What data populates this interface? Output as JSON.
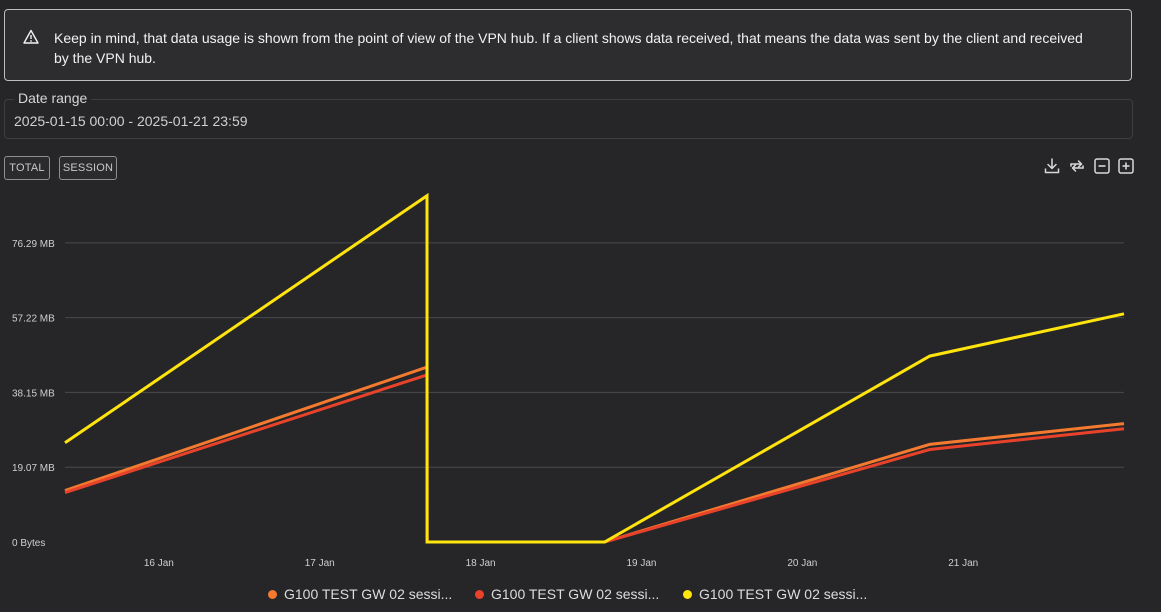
{
  "notice": {
    "text": "Keep in mind, that data usage is shown from the point of view of the VPN hub. If a client shows data received, that means the data was sent by the client and received by the VPN hub."
  },
  "date_range": {
    "label": "Date range",
    "value": "2025-01-15 00:00 - 2025-01-21 23:59"
  },
  "toggles": {
    "total": "TOTAL",
    "session": "SESSION"
  },
  "toolbar": {
    "icons": [
      "download-icon",
      "reset-icon",
      "zoom-out-icon",
      "zoom-in-icon"
    ]
  },
  "colors": {
    "background": "#262628",
    "grid": "#4a4a4e",
    "axis_text": "#cfcfcf"
  },
  "chart_data": {
    "type": "line",
    "x_unit": "date",
    "y_unit": "MB",
    "ylim": [
      0,
      95.37
    ],
    "y_ticks": [
      {
        "value": 0,
        "label": "0 Bytes"
      },
      {
        "value": 19.07,
        "label": "19.07 MB"
      },
      {
        "value": 38.15,
        "label": "38.15 MB"
      },
      {
        "value": 57.22,
        "label": "57.22 MB"
      },
      {
        "value": 76.29,
        "label": "76.29 MB"
      }
    ],
    "xlim": [
      "2025-01-15 10:00",
      "2025-01-21 23:59"
    ],
    "x_ticks": [
      {
        "value": "2025-01-16 00:00",
        "label": "16 Jan"
      },
      {
        "value": "2025-01-17 00:00",
        "label": "17 Jan"
      },
      {
        "value": "2025-01-18 00:00",
        "label": "18 Jan"
      },
      {
        "value": "2025-01-19 00:00",
        "label": "19 Jan"
      },
      {
        "value": "2025-01-20 00:00",
        "label": "20 Jan"
      },
      {
        "value": "2025-01-21 00:00",
        "label": "21 Jan"
      }
    ],
    "grid": true,
    "legend_position": "bottom",
    "series": [
      {
        "name": "G100 TEST GW 02 sessi...",
        "color": "#f47a30",
        "points": [
          {
            "x": "2025-01-15 10:00",
            "y": 13.1
          },
          {
            "x": "2025-01-17 16:00",
            "y": 44.6
          },
          {
            "x": "2025-01-17 16:01",
            "y": 0
          },
          {
            "x": "2025-01-18 18:30",
            "y": 0
          },
          {
            "x": "2025-01-20 19:00",
            "y": 24.9
          },
          {
            "x": "2025-01-21 23:59",
            "y": 30.2
          }
        ]
      },
      {
        "name": "G100 TEST GW 02 sessi...",
        "color": "#e8432a",
        "points": [
          {
            "x": "2025-01-15 10:00",
            "y": 12.6
          },
          {
            "x": "2025-01-17 16:00",
            "y": 42.6
          },
          {
            "x": "2025-01-17 16:01",
            "y": 0
          },
          {
            "x": "2025-01-18 18:30",
            "y": 0
          },
          {
            "x": "2025-01-20 19:00",
            "y": 23.6
          },
          {
            "x": "2025-01-21 23:59",
            "y": 28.9
          }
        ]
      },
      {
        "name": "G100 TEST GW 02 sessi...",
        "color": "#ffe40d",
        "points": [
          {
            "x": "2025-01-15 10:00",
            "y": 25.3
          },
          {
            "x": "2025-01-17 16:00",
            "y": 88.3
          },
          {
            "x": "2025-01-17 16:01",
            "y": 0
          },
          {
            "x": "2025-01-18 18:30",
            "y": 0
          },
          {
            "x": "2025-01-20 19:00",
            "y": 47.4
          },
          {
            "x": "2025-01-21 23:59",
            "y": 58.2
          }
        ]
      }
    ]
  }
}
